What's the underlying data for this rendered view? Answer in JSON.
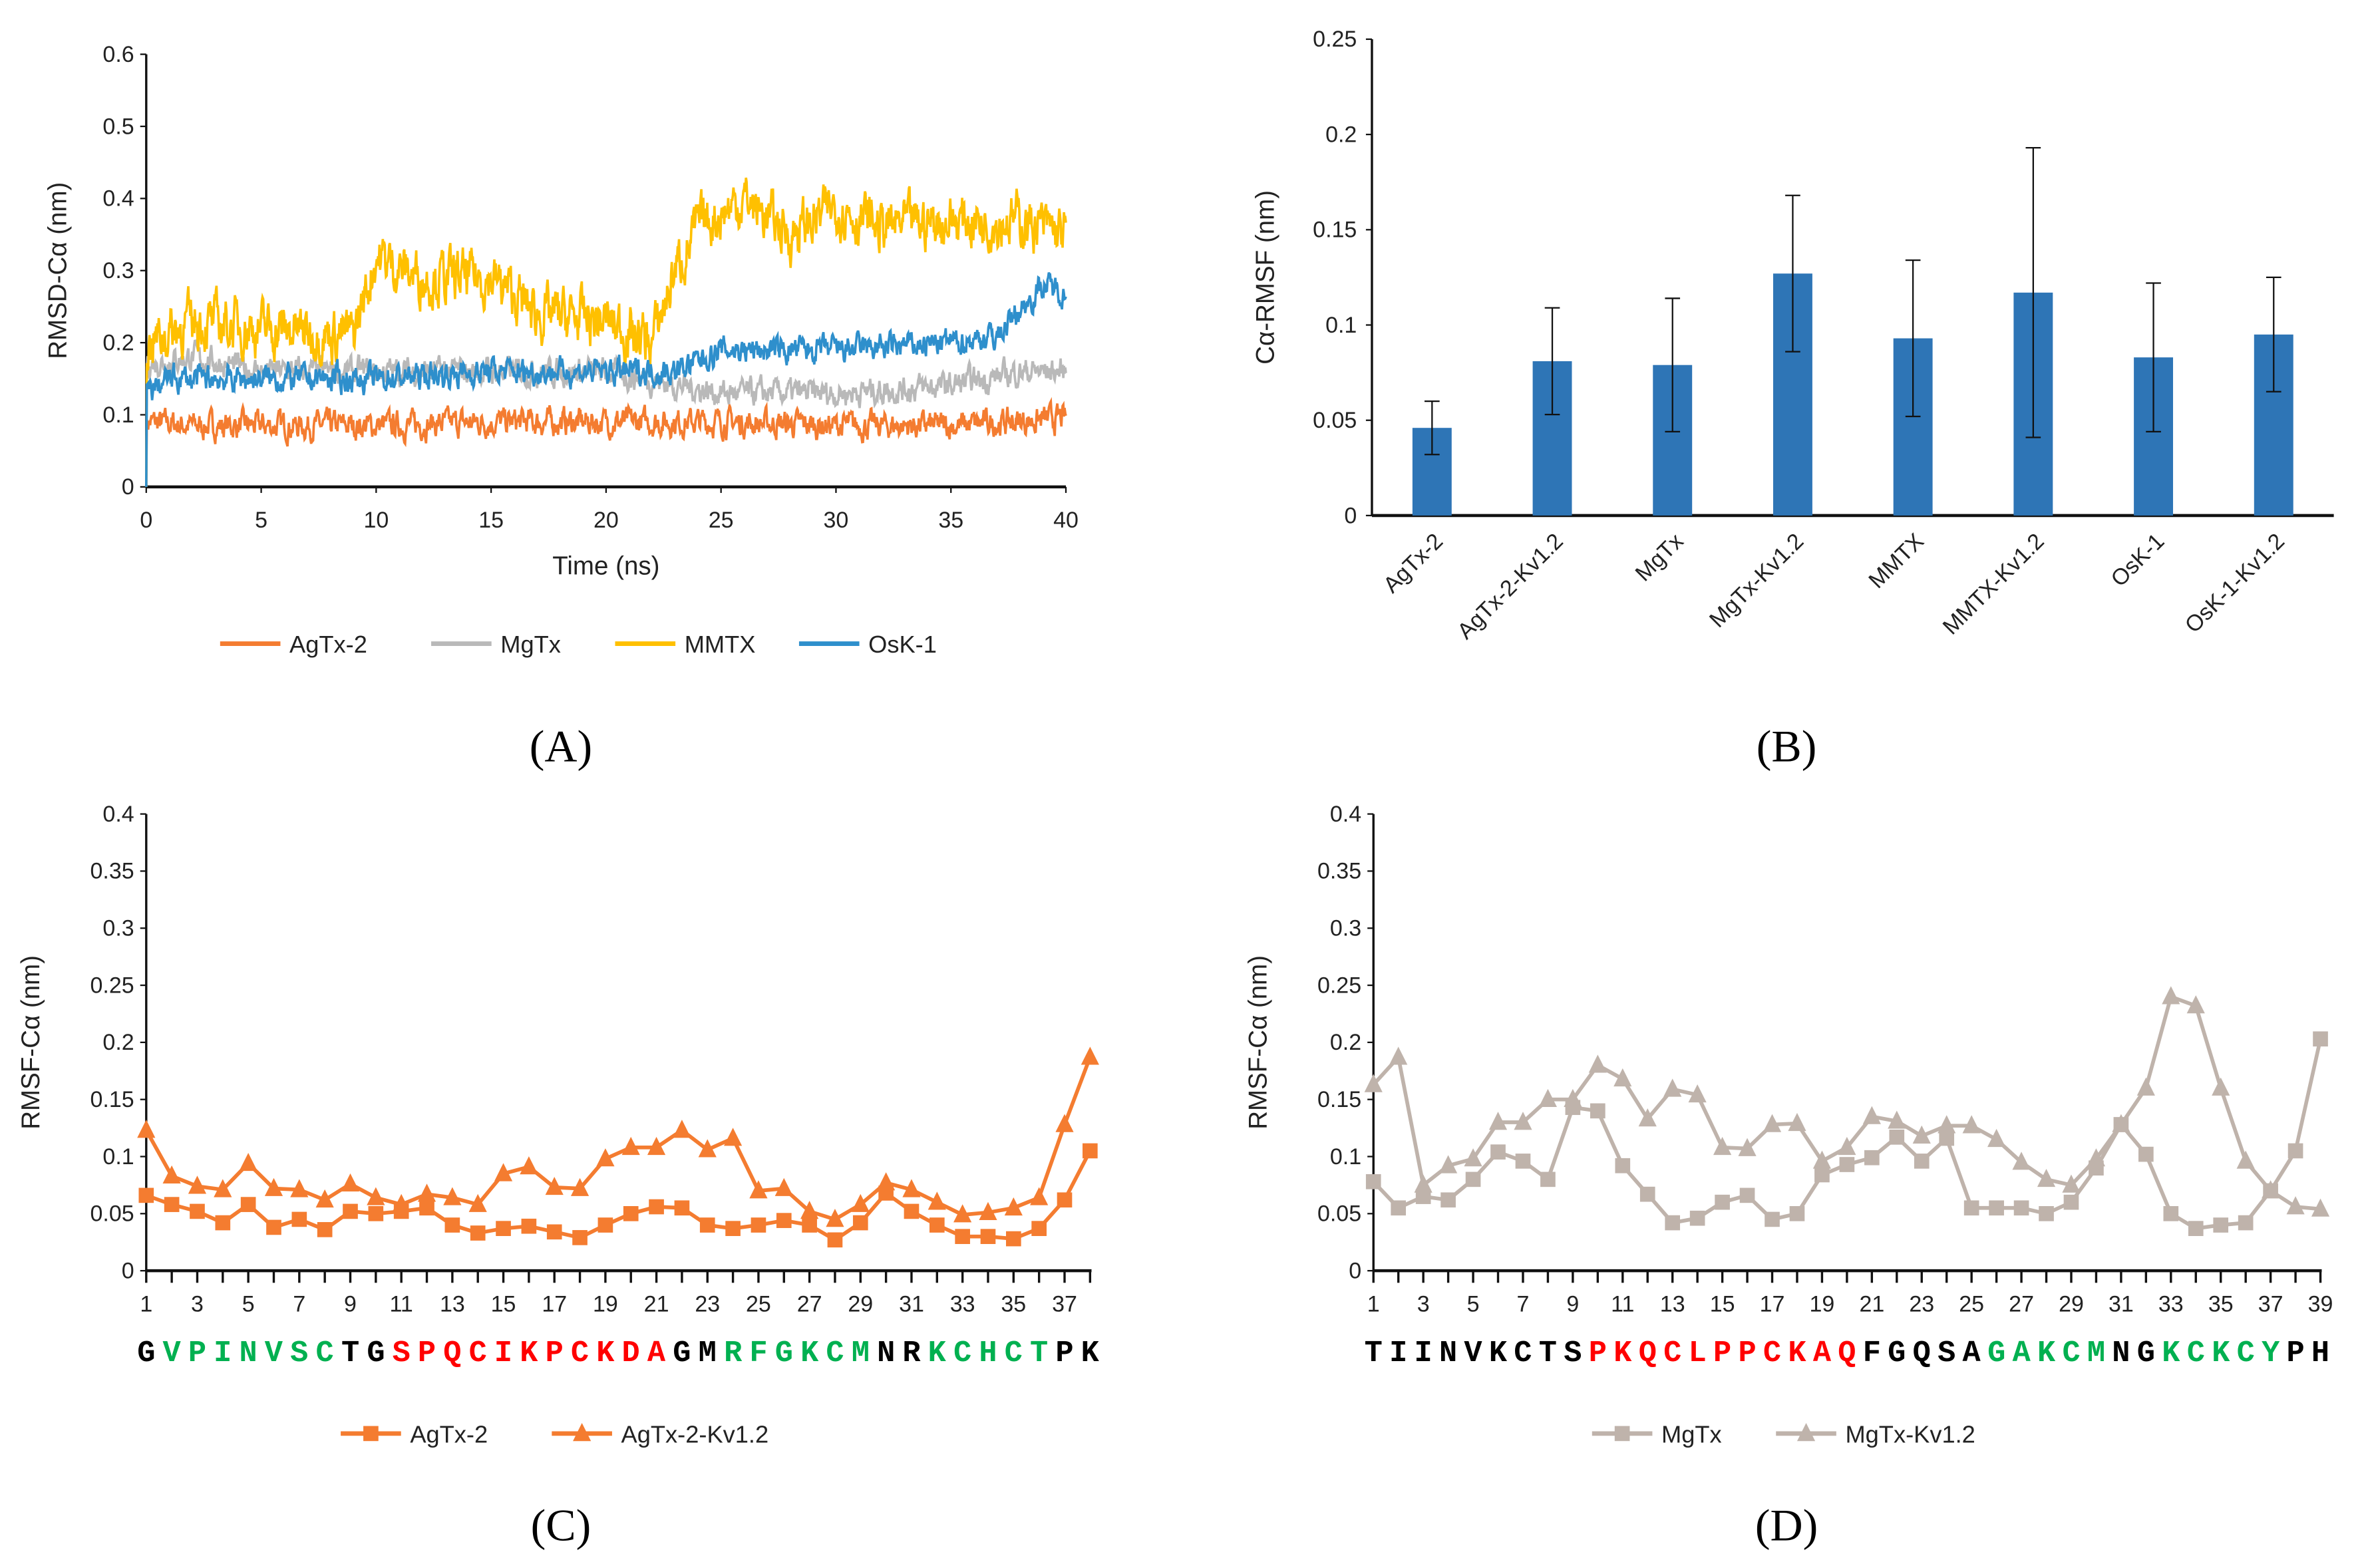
{
  "chart_data": [
    {
      "panel": "(A)",
      "type": "line",
      "xlabel": "Time (ns)",
      "ylabel": "RMSD-Cα (nm)",
      "xlim": [
        0,
        40
      ],
      "ylim": [
        0,
        0.6
      ],
      "xticks": [
        "0",
        "5",
        "10",
        "15",
        "20",
        "25",
        "30",
        "35",
        "40"
      ],
      "yticks": [
        "0",
        "0.1",
        "0.2",
        "0.3",
        "0.4",
        "0.5",
        "0.6"
      ],
      "legend_position": "bottom",
      "series": [
        {
          "name": "AgTx-2",
          "color": "#f47c30",
          "x": [
            0,
            2,
            10,
            15,
            20,
            25,
            30,
            35,
            40
          ],
          "y": [
            0.09,
            0.085,
            0.085,
            0.09,
            0.09,
            0.09,
            0.085,
            0.085,
            0.095
          ]
        },
        {
          "name": "MgTx",
          "color": "#b9b9b9",
          "x": [
            0,
            2,
            5,
            10,
            15,
            20,
            25,
            30,
            35,
            38,
            40
          ],
          "y": [
            0.17,
            0.18,
            0.16,
            0.16,
            0.16,
            0.16,
            0.13,
            0.13,
            0.14,
            0.16,
            0.16
          ]
        },
        {
          "name": "MMTX",
          "color": "#ffc000",
          "x": [
            0,
            2,
            5,
            9,
            10,
            12,
            15,
            17,
            20,
            22,
            23,
            24,
            26,
            28,
            30,
            32,
            35,
            38,
            40
          ],
          "y": [
            0.2,
            0.23,
            0.22,
            0.21,
            0.32,
            0.29,
            0.29,
            0.24,
            0.23,
            0.2,
            0.3,
            0.36,
            0.4,
            0.35,
            0.39,
            0.36,
            0.37,
            0.37,
            0.35
          ]
        },
        {
          "name": "OsK-1",
          "color": "#2e8fcc",
          "x": [
            0,
            1,
            5,
            10,
            15,
            20,
            23,
            25,
            30,
            35,
            37,
            39,
            40
          ],
          "y": [
            0.13,
            0.15,
            0.15,
            0.15,
            0.16,
            0.16,
            0.16,
            0.19,
            0.19,
            0.2,
            0.21,
            0.28,
            0.27
          ]
        }
      ]
    },
    {
      "panel": "(B)",
      "type": "bar",
      "ylabel": "Cα-RMSF (nm)",
      "ylim": [
        0,
        0.25
      ],
      "yticks": [
        "0",
        "0.05",
        "0.1",
        "0.15",
        "0.2",
        "0.25"
      ],
      "color": "#2e75b6",
      "categories": [
        "AgTx-2",
        "AgTx-2-Kv1.2",
        "MgTx",
        "MgTx-Kv1.2",
        "MMTX",
        "MMTX-Kv1.2",
        "OsK-1",
        "OsK-1-Kv1.2"
      ],
      "values": [
        0.046,
        0.081,
        0.079,
        0.127,
        0.093,
        0.117,
        0.083,
        0.095
      ],
      "errors": [
        0.014,
        0.028,
        0.035,
        0.041,
        0.041,
        0.076,
        0.039,
        0.03
      ]
    },
    {
      "panel": "(C)",
      "type": "line",
      "ylabel": "RMSF-Cα (nm)",
      "ylim": [
        0,
        0.4
      ],
      "yticks": [
        "0",
        "0.05",
        "0.1",
        "0.15",
        "0.2",
        "0.25",
        "0.3",
        "0.35",
        "0.4"
      ],
      "xticks": [
        "1",
        "3",
        "5",
        "7",
        "9",
        "11",
        "13",
        "15",
        "17",
        "19",
        "21",
        "23",
        "25",
        "27",
        "29",
        "31",
        "33",
        "35",
        "37"
      ],
      "color": "#f47c30",
      "sequence": [
        {
          "text": "G",
          "color": "#000000"
        },
        {
          "text": "VPINVSC",
          "color": "#00b050"
        },
        {
          "text": "TG",
          "color": "#000000"
        },
        {
          "text": "SPQCIKPCKDA",
          "color": "#ff0000"
        },
        {
          "text": "GM",
          "color": "#000000"
        },
        {
          "text": "RFGKCM",
          "color": "#00b050"
        },
        {
          "text": "NR",
          "color": "#000000"
        },
        {
          "text": "KCHCT",
          "color": "#00b050"
        },
        {
          "text": "PK",
          "color": "#000000"
        }
      ],
      "series": [
        {
          "name": "AgTx-2",
          "marker": "square",
          "values": [
            0.066,
            0.058,
            0.052,
            0.042,
            0.058,
            0.038,
            0.045,
            0.036,
            0.052,
            0.05,
            0.052,
            0.055,
            0.04,
            0.033,
            0.037,
            0.039,
            0.034,
            0.029,
            0.04,
            0.05,
            0.056,
            0.055,
            0.04,
            0.037,
            0.04,
            0.044,
            0.04,
            0.027,
            0.042,
            0.068,
            0.052,
            0.04,
            0.03,
            0.03,
            0.028,
            0.037,
            0.062,
            0.105
          ]
        },
        {
          "name": "AgTx-2-Kv1.2",
          "marker": "triangle",
          "values": [
            0.123,
            0.083,
            0.074,
            0.071,
            0.094,
            0.072,
            0.071,
            0.062,
            0.076,
            0.064,
            0.058,
            0.067,
            0.064,
            0.058,
            0.085,
            0.091,
            0.073,
            0.072,
            0.098,
            0.108,
            0.108,
            0.123,
            0.106,
            0.116,
            0.07,
            0.072,
            0.052,
            0.045,
            0.058,
            0.077,
            0.071,
            0.06,
            0.049,
            0.051,
            0.055,
            0.064,
            0.128,
            0.187
          ]
        }
      ]
    },
    {
      "panel": "(D)",
      "type": "line",
      "ylabel": "RMSF-Cα (nm)",
      "ylim": [
        0,
        0.4
      ],
      "yticks": [
        "0",
        "0.05",
        "0.1",
        "0.15",
        "0.2",
        "0.25",
        "0.3",
        "0.35",
        "0.4"
      ],
      "xticks": [
        "1",
        "3",
        "5",
        "7",
        "9",
        "11",
        "13",
        "15",
        "17",
        "19",
        "21",
        "23",
        "25",
        "27",
        "29",
        "31",
        "33",
        "35",
        "37",
        "39"
      ],
      "color": "#bfb3ab",
      "sequence": [
        {
          "text": "TIINVKCTS",
          "color": "#000000"
        },
        {
          "text": "PKQCLPPCKAQ",
          "color": "#ff0000"
        },
        {
          "text": "FGQSA",
          "color": "#000000"
        },
        {
          "text": "GAKCM",
          "color": "#00b050"
        },
        {
          "text": "NG",
          "color": "#000000"
        },
        {
          "text": "KCKCY",
          "color": "#00b050"
        },
        {
          "text": "PH",
          "color": "#000000"
        }
      ],
      "series": [
        {
          "name": "MgTx",
          "marker": "square",
          "values": [
            0.078,
            0.055,
            0.065,
            0.062,
            0.08,
            0.104,
            0.096,
            0.08,
            0.143,
            0.14,
            0.092,
            0.067,
            0.042,
            0.046,
            0.06,
            0.066,
            0.045,
            0.05,
            0.084,
            0.093,
            0.099,
            0.117,
            0.096,
            0.116,
            0.055,
            0.055,
            0.055,
            0.05,
            0.06,
            0.09,
            0.128,
            0.102,
            0.05,
            0.037,
            0.04,
            0.042,
            0.07,
            0.105,
            0.203
          ]
        },
        {
          "name": "MgTx-Kv1.2",
          "marker": "triangle",
          "values": [
            0.163,
            0.187,
            0.075,
            0.092,
            0.098,
            0.13,
            0.13,
            0.15,
            0.15,
            0.18,
            0.168,
            0.133,
            0.159,
            0.154,
            0.108,
            0.107,
            0.128,
            0.129,
            0.096,
            0.108,
            0.135,
            0.131,
            0.118,
            0.127,
            0.127,
            0.115,
            0.095,
            0.08,
            0.075,
            0.098,
            0.128,
            0.16,
            0.24,
            0.232,
            0.16,
            0.096,
            0.07,
            0.056,
            0.054
          ]
        }
      ]
    }
  ]
}
